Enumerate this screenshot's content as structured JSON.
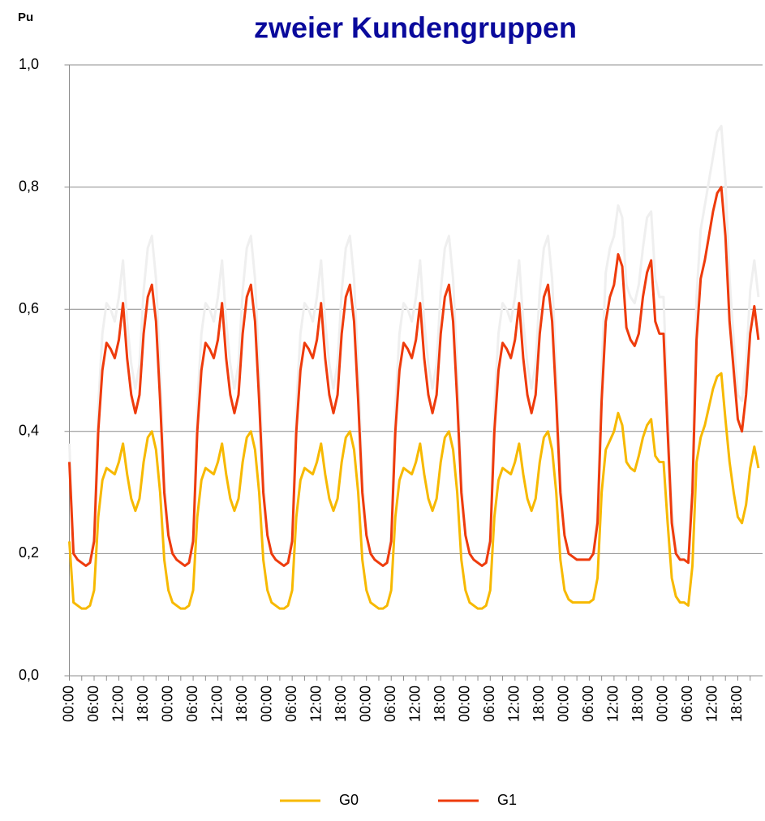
{
  "chart_data": {
    "type": "line",
    "title": "zweier Kundengruppen",
    "y_label": "Pu",
    "ylim": [
      0,
      1
    ],
    "yticks": [
      {
        "value": 0,
        "label": "0,0"
      },
      {
        "value": 0.2,
        "label": "0,2"
      },
      {
        "value": 0.4,
        "label": "0,4"
      },
      {
        "value": 0.6,
        "label": "0,6"
      },
      {
        "value": 0.8,
        "label": "0,8"
      },
      {
        "value": 1,
        "label": "1,0"
      }
    ],
    "grid": true,
    "legend": "bottom",
    "categories": [
      "00:00",
      null,
      null,
      null,
      null,
      null,
      "06:00",
      null,
      null,
      null,
      null,
      null,
      "12:00",
      null,
      null,
      null,
      null,
      null,
      "18:00",
      null,
      null,
      null,
      null,
      null,
      "00:00",
      null,
      null,
      null,
      null,
      null,
      "06:00",
      null,
      null,
      null,
      null,
      null,
      "12:00",
      null,
      null,
      null,
      null,
      null,
      "18:00",
      null,
      null,
      null,
      null,
      null,
      "00:00",
      null,
      null,
      null,
      null,
      null,
      "06:00",
      null,
      null,
      null,
      null,
      null,
      "12:00",
      null,
      null,
      null,
      null,
      null,
      "18:00",
      null,
      null,
      null,
      null,
      null,
      "00:00",
      null,
      null,
      null,
      null,
      null,
      "06:00",
      null,
      null,
      null,
      null,
      null,
      "12:00",
      null,
      null,
      null,
      null,
      null,
      "18:00",
      null,
      null,
      null,
      null,
      null,
      "00:00",
      null,
      null,
      null,
      null,
      null,
      "06:00",
      null,
      null,
      null,
      null,
      null,
      "12:00",
      null,
      null,
      null,
      null,
      null,
      "18:00",
      null,
      null,
      null,
      null,
      null,
      "00:00",
      null,
      null,
      null,
      null,
      null,
      "06:00",
      null,
      null,
      null,
      null,
      null,
      "12:00",
      null,
      null,
      null,
      null,
      null,
      "18:00",
      null,
      null,
      null,
      null,
      null,
      "00:00",
      null,
      null,
      null,
      null,
      null,
      "06:00",
      null,
      null,
      null,
      null,
      null,
      "12:00",
      null,
      null,
      null,
      null,
      null,
      "18:00",
      null,
      null,
      null,
      null,
      null
    ],
    "series": [
      {
        "color": "#efefef",
        "values": [
          0.38,
          0.2,
          0.19,
          0.185,
          0.18,
          0.19,
          0.23,
          0.44,
          0.56,
          0.61,
          0.6,
          0.58,
          0.62,
          0.68,
          0.58,
          0.51,
          0.47,
          0.51,
          0.63,
          0.7,
          0.72,
          0.65,
          0.5,
          0.32,
          0.23,
          0.2,
          0.19,
          0.185,
          0.18,
          0.19,
          0.23,
          0.44,
          0.56,
          0.61,
          0.6,
          0.58,
          0.62,
          0.68,
          0.58,
          0.51,
          0.47,
          0.51,
          0.63,
          0.7,
          0.72,
          0.65,
          0.5,
          0.32,
          0.23,
          0.2,
          0.19,
          0.185,
          0.18,
          0.19,
          0.23,
          0.44,
          0.56,
          0.61,
          0.6,
          0.58,
          0.62,
          0.68,
          0.58,
          0.51,
          0.47,
          0.51,
          0.63,
          0.7,
          0.72,
          0.65,
          0.5,
          0.32,
          0.23,
          0.2,
          0.19,
          0.185,
          0.18,
          0.19,
          0.23,
          0.44,
          0.56,
          0.61,
          0.6,
          0.58,
          0.62,
          0.68,
          0.58,
          0.51,
          0.47,
          0.51,
          0.63,
          0.7,
          0.72,
          0.65,
          0.5,
          0.32,
          0.23,
          0.2,
          0.19,
          0.185,
          0.18,
          0.19,
          0.23,
          0.44,
          0.56,
          0.61,
          0.6,
          0.58,
          0.62,
          0.68,
          0.58,
          0.51,
          0.47,
          0.51,
          0.63,
          0.7,
          0.72,
          0.65,
          0.5,
          0.32,
          0.23,
          0.2,
          0.195,
          0.19,
          0.19,
          0.19,
          0.19,
          0.2,
          0.27,
          0.5,
          0.66,
          0.7,
          0.72,
          0.77,
          0.75,
          0.64,
          0.62,
          0.61,
          0.64,
          0.7,
          0.75,
          0.76,
          0.65,
          0.62,
          0.62,
          0.44,
          0.27,
          0.21,
          0.195,
          0.19,
          0.19,
          0.33,
          0.62,
          0.73,
          0.77,
          0.81,
          0.85,
          0.89,
          0.9,
          0.81,
          0.65,
          0.55,
          0.46,
          0.45,
          0.51,
          0.63,
          0.68,
          0.62
        ]
      },
      {
        "name": "G0",
        "color": "#f7b900",
        "values": [
          0.22,
          0.12,
          0.115,
          0.11,
          0.11,
          0.115,
          0.14,
          0.26,
          0.32,
          0.34,
          0.335,
          0.33,
          0.35,
          0.38,
          0.33,
          0.29,
          0.27,
          0.29,
          0.35,
          0.39,
          0.4,
          0.37,
          0.3,
          0.19,
          0.14,
          0.12,
          0.115,
          0.11,
          0.11,
          0.115,
          0.14,
          0.26,
          0.32,
          0.34,
          0.335,
          0.33,
          0.35,
          0.38,
          0.33,
          0.29,
          0.27,
          0.29,
          0.35,
          0.39,
          0.4,
          0.37,
          0.3,
          0.19,
          0.14,
          0.12,
          0.115,
          0.11,
          0.11,
          0.115,
          0.14,
          0.26,
          0.32,
          0.34,
          0.335,
          0.33,
          0.35,
          0.38,
          0.33,
          0.29,
          0.27,
          0.29,
          0.35,
          0.39,
          0.4,
          0.37,
          0.3,
          0.19,
          0.14,
          0.12,
          0.115,
          0.11,
          0.11,
          0.115,
          0.14,
          0.26,
          0.32,
          0.34,
          0.335,
          0.33,
          0.35,
          0.38,
          0.33,
          0.29,
          0.27,
          0.29,
          0.35,
          0.39,
          0.4,
          0.37,
          0.3,
          0.19,
          0.14,
          0.12,
          0.115,
          0.11,
          0.11,
          0.115,
          0.14,
          0.26,
          0.32,
          0.34,
          0.335,
          0.33,
          0.35,
          0.38,
          0.33,
          0.29,
          0.27,
          0.29,
          0.35,
          0.39,
          0.4,
          0.37,
          0.3,
          0.19,
          0.14,
          0.125,
          0.12,
          0.12,
          0.12,
          0.12,
          0.12,
          0.125,
          0.16,
          0.3,
          0.37,
          0.385,
          0.4,
          0.43,
          0.41,
          0.35,
          0.34,
          0.335,
          0.36,
          0.39,
          0.41,
          0.42,
          0.36,
          0.35,
          0.35,
          0.25,
          0.16,
          0.13,
          0.12,
          0.12,
          0.115,
          0.18,
          0.35,
          0.39,
          0.41,
          0.44,
          0.47,
          0.49,
          0.495,
          0.42,
          0.35,
          0.3,
          0.26,
          0.25,
          0.28,
          0.34,
          0.375,
          0.34
        ]
      },
      {
        "name": "G1",
        "color": "#ee3b0c",
        "values": [
          0.35,
          0.2,
          0.19,
          0.185,
          0.18,
          0.185,
          0.22,
          0.4,
          0.5,
          0.545,
          0.535,
          0.52,
          0.55,
          0.61,
          0.52,
          0.46,
          0.43,
          0.46,
          0.56,
          0.62,
          0.64,
          0.58,
          0.45,
          0.3,
          0.23,
          0.2,
          0.19,
          0.185,
          0.18,
          0.185,
          0.22,
          0.4,
          0.5,
          0.545,
          0.535,
          0.52,
          0.55,
          0.61,
          0.52,
          0.46,
          0.43,
          0.46,
          0.56,
          0.62,
          0.64,
          0.58,
          0.45,
          0.3,
          0.23,
          0.2,
          0.19,
          0.185,
          0.18,
          0.185,
          0.22,
          0.4,
          0.5,
          0.545,
          0.535,
          0.52,
          0.55,
          0.61,
          0.52,
          0.46,
          0.43,
          0.46,
          0.56,
          0.62,
          0.64,
          0.58,
          0.45,
          0.3,
          0.23,
          0.2,
          0.19,
          0.185,
          0.18,
          0.185,
          0.22,
          0.4,
          0.5,
          0.545,
          0.535,
          0.52,
          0.55,
          0.61,
          0.52,
          0.46,
          0.43,
          0.46,
          0.56,
          0.62,
          0.64,
          0.58,
          0.45,
          0.3,
          0.23,
          0.2,
          0.19,
          0.185,
          0.18,
          0.185,
          0.22,
          0.4,
          0.5,
          0.545,
          0.535,
          0.52,
          0.55,
          0.61,
          0.52,
          0.46,
          0.43,
          0.46,
          0.56,
          0.62,
          0.64,
          0.58,
          0.45,
          0.3,
          0.23,
          0.2,
          0.195,
          0.19,
          0.19,
          0.19,
          0.19,
          0.2,
          0.25,
          0.45,
          0.58,
          0.62,
          0.64,
          0.69,
          0.67,
          0.57,
          0.55,
          0.54,
          0.56,
          0.62,
          0.66,
          0.68,
          0.58,
          0.56,
          0.56,
          0.4,
          0.25,
          0.2,
          0.19,
          0.19,
          0.185,
          0.3,
          0.55,
          0.65,
          0.68,
          0.72,
          0.76,
          0.79,
          0.8,
          0.72,
          0.58,
          0.5,
          0.42,
          0.4,
          0.46,
          0.56,
          0.605,
          0.55
        ]
      }
    ]
  }
}
